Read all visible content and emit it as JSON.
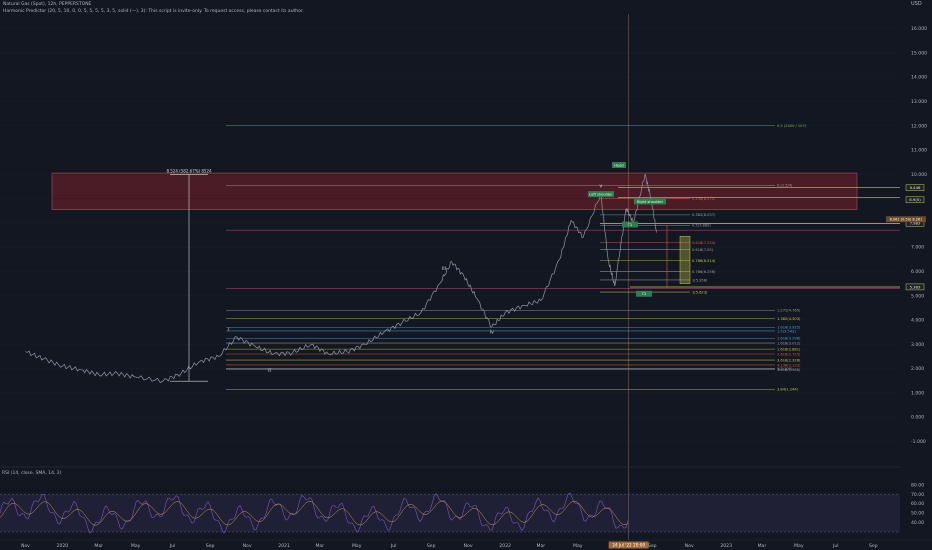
{
  "header": {
    "symbol_line": "Natural Gas (Spot), 12h, PEPPERSTONE",
    "indicator_line": "Harmonic Predictor (20, 5, 10, 0, 0, 5, 5, 5, 5, 3, 5, solid (—), 3): This script is invite-only. To request access, please contact its author.",
    "currency": "USD"
  },
  "colors": {
    "background": "#131722",
    "price": "#8f98a8",
    "zone_fill": "#7a1f2a",
    "zone_border": "#c04a55",
    "cursor_line": "#d9884a",
    "rsi_line": "#7e57c2",
    "rsi_ma": "#d1a13a",
    "green_tag": "#2e7d4f",
    "yellow_line": "#c9c64a"
  },
  "chart_data": [
    {
      "type": "line",
      "title": "",
      "series": [
        {
          "name": "",
          "values": [
            [
              "2019-11-01",
              2.7
            ],
            [
              "2019-12-01",
              2.4
            ],
            [
              "2020-01-01",
              2.1
            ],
            [
              "2020-02-01",
              1.95
            ],
            [
              "2020-03-01",
              1.75
            ],
            [
              "2020-04-01",
              1.8
            ],
            [
              "2020-05-01",
              1.65
            ],
            [
              "2020-06-15",
              1.48
            ],
            [
              "2020-07-15",
              1.8
            ],
            [
              "2020-08-15",
              2.3
            ],
            [
              "2020-09-15",
              2.5
            ],
            [
              "2020-10-15",
              3.3
            ],
            [
              "2020-11-15",
              2.9
            ],
            [
              "2020-12-15",
              2.6
            ],
            [
              "2021-01-15",
              2.65
            ],
            [
              "2021-02-15",
              3.0
            ],
            [
              "2021-03-15",
              2.6
            ],
            [
              "2021-04-15",
              2.7
            ],
            [
              "2021-05-15",
              3.0
            ],
            [
              "2021-06-15",
              3.5
            ],
            [
              "2021-07-15",
              3.9
            ],
            [
              "2021-08-15",
              4.3
            ],
            [
              "2021-09-15",
              5.5
            ],
            [
              "2021-10-05",
              6.4
            ],
            [
              "2021-10-25",
              5.8
            ],
            [
              "2021-11-15",
              4.9
            ],
            [
              "2021-12-10",
              3.7
            ],
            [
              "2022-01-01",
              4.3
            ],
            [
              "2022-02-01",
              4.6
            ],
            [
              "2022-03-01",
              4.8
            ],
            [
              "2022-04-01",
              6.5
            ],
            [
              "2022-04-20",
              8.1
            ],
            [
              "2022-05-10",
              7.4
            ],
            [
              "2022-06-08",
              9.2
            ],
            [
              "2022-06-20",
              6.5
            ],
            [
              "2022-07-01",
              5.4
            ],
            [
              "2022-07-20",
              8.6
            ],
            [
              "2022-08-01",
              8.0
            ],
            [
              "2022-08-20",
              10.0
            ],
            [
              "2022-08-30",
              9.0
            ],
            [
              "2022-09-08",
              7.6
            ]
          ]
        }
      ],
      "y_ticks": [
        "16.000",
        "15.000",
        "14.000",
        "13.000",
        "12.000",
        "11.000",
        "10.000",
        "9.000",
        "8.000",
        "7.000",
        "6.000",
        "5.000",
        "4.000",
        "3.000",
        "2.000",
        "1.000",
        "0.000",
        "-1.000"
      ],
      "ylim": [
        -1.6,
        16.6
      ],
      "x_ticks": [
        "Nov",
        "2020",
        "Mar",
        "May",
        "Jul",
        "Sep",
        "Nov",
        "2021",
        "Mar",
        "May",
        "Jul",
        "Sep",
        "Nov",
        "2022",
        "Mar",
        "May",
        "Jul",
        "Sep",
        "Nov",
        "2023",
        "Mar",
        "May",
        "Jul",
        "Sep"
      ],
      "x_range": [
        "2019-09-20",
        "2023-10-15"
      ],
      "crosshair_date_label": "24 Jul '22  20:00",
      "legend": "none",
      "annotations": {
        "wave_labels": [
          {
            "text": "i",
            "date": "2020-10-01",
            "y": 3.55
          },
          {
            "text": "ii",
            "date": "2020-12-08",
            "y": 1.85
          },
          {
            "text": "iii",
            "date": "2021-09-22",
            "y": 6.05
          },
          {
            "text": "iv",
            "date": "2021-12-10",
            "y": 3.45
          },
          {
            "text": "v",
            "date": "2022-06-08",
            "y": 9.45
          }
        ],
        "measure_label": "8.524 (582.67%) 8524",
        "tags": [
          "Left shoulder",
          "Right shoulder",
          "Head",
          "T1",
          "T2"
        ],
        "fib_levels": [
          {
            "y": 12.0,
            "text": "0.5 (2400 / 107)"
          },
          {
            "y": 9.55,
            "text": "0.(1.5/4)"
          },
          {
            "y": 9.0,
            "text": "0.236(8.272)"
          },
          {
            "y": 8.33,
            "text": "0.382(8.037)"
          },
          {
            "y": 7.9,
            "text": "0.5(7.880)"
          },
          {
            "y": 7.18,
            "text": "0.618(7.254)"
          },
          {
            "y": 6.9,
            "text": "0.618(7.05)"
          },
          {
            "y": 6.45,
            "text": "0.786(6.514)"
          },
          {
            "y": 6.0,
            "text": "0.786(6.256)"
          },
          {
            "y": 5.65,
            "text": "1(5.958)"
          },
          {
            "y": 5.15,
            "text": "1(5.623)"
          },
          {
            "y": 4.4,
            "text": "1.272(4.765)"
          },
          {
            "y": 4.05,
            "text": "1.382(4.303)"
          },
          {
            "y": 3.7,
            "text": "1.618(3.925)"
          },
          {
            "y": 3.55,
            "text": "1.5(3.543)"
          },
          {
            "y": 3.25,
            "text": "1.618(3.298)"
          },
          {
            "y": 3.05,
            "text": "1.618(3.012)"
          },
          {
            "y": 2.8,
            "text": "1.618(2.881)"
          },
          {
            "y": 2.6,
            "text": "2.618(2.725)"
          },
          {
            "y": 2.35,
            "text": "3.618(2.326)"
          },
          {
            "y": 2.15,
            "text": "4.236(2.122)"
          },
          {
            "y": 2.0,
            "text": "3(2.104)"
          },
          {
            "y": 1.95,
            "text": "3.618(1.988)"
          },
          {
            "y": 1.15,
            "text": "3.84(1.144)"
          }
        ],
        "price_tags": [
          "9.446",
          "8.9(5)",
          "7.983",
          "5.363"
        ],
        "current_price_tag": "8.061 (0.59) 8.261"
      }
    },
    {
      "type": "line",
      "title": "RSI (14, close, SMA, 14, 2)",
      "y_ticks": [
        "80.00",
        "70.00",
        "60.00",
        "50.00",
        "40.00"
      ],
      "ylim": [
        30,
        85
      ],
      "bands": [
        30,
        70
      ],
      "legend": "none"
    }
  ]
}
